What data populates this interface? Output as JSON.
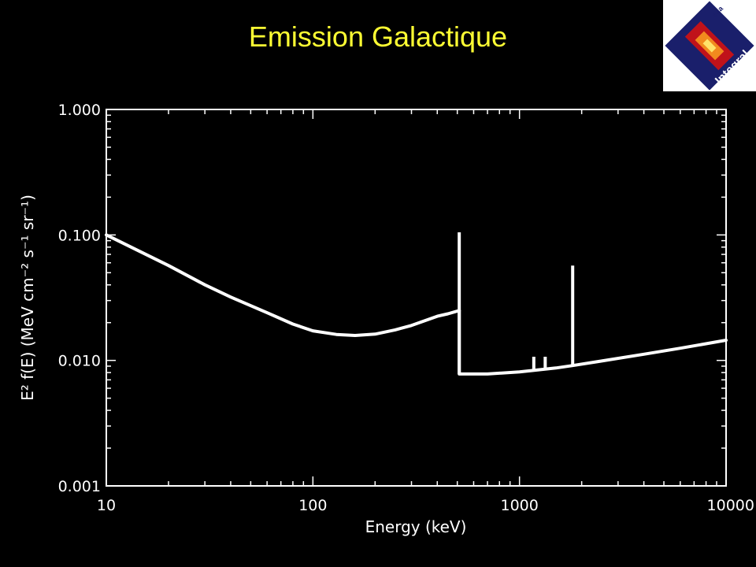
{
  "title": "Emission Galactique",
  "logo": {
    "text_esa": "esa",
    "text_integral": "Integral"
  },
  "colors": {
    "background": "#000000",
    "title": "#ffff33",
    "foreground": "#ffffff"
  },
  "chart_data": {
    "type": "line",
    "title": "Emission Galactique",
    "xlabel": "Energy (keV)",
    "ylabel": "E² f(E) (MeV cm⁻² s⁻¹ sr⁻¹)",
    "xscale": "log",
    "yscale": "log",
    "xlim": [
      10,
      10000
    ],
    "ylim": [
      0.001,
      1.0
    ],
    "x_tick_labels": [
      "10",
      "100",
      "1000",
      "10000"
    ],
    "y_tick_labels": [
      "0.001",
      "0.010",
      "0.100",
      "1.000"
    ],
    "grid": false,
    "series": [
      {
        "x": [
          10,
          15,
          20,
          30,
          40,
          60,
          80,
          100,
          130,
          160,
          200,
          250,
          300,
          400,
          450,
          511
        ],
        "y": [
          0.1,
          0.072,
          0.057,
          0.04,
          0.032,
          0.024,
          0.0195,
          0.0172,
          0.0161,
          0.0158,
          0.0162,
          0.0175,
          0.019,
          0.0225,
          0.0235,
          0.025
        ]
      },
      {
        "x": [
          511,
          700,
          1000,
          1500,
          1809,
          2500,
          4000,
          6000,
          10000
        ],
        "y": [
          0.0078,
          0.0078,
          0.0081,
          0.0087,
          0.0091,
          0.0099,
          0.0112,
          0.0125,
          0.0145
        ]
      }
    ],
    "lines": [
      {
        "energy": 511,
        "y_low": 0.0078,
        "y_peak": 0.105
      },
      {
        "energy": 1173,
        "y_low": 0.0083,
        "y_peak": 0.0107
      },
      {
        "energy": 1332,
        "y_low": 0.0085,
        "y_peak": 0.0107
      },
      {
        "energy": 1809,
        "y_low": 0.0091,
        "y_peak": 0.057
      }
    ]
  }
}
